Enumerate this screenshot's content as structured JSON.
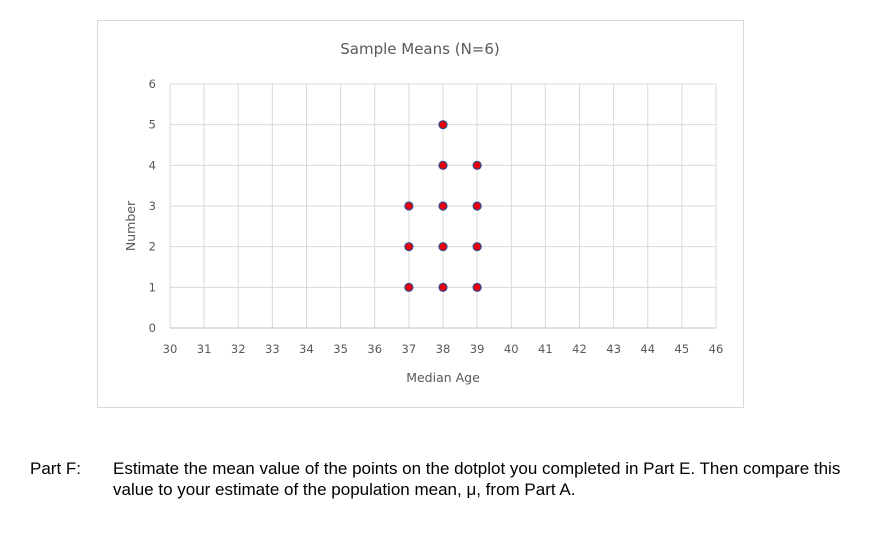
{
  "chart_data": {
    "type": "scatter",
    "title": "Sample Means (N=6)",
    "xlabel": "Median Age",
    "ylabel": "Number",
    "xlim": [
      30,
      46
    ],
    "ylim": [
      0,
      6
    ],
    "xticks": [
      30,
      31,
      32,
      33,
      34,
      35,
      36,
      37,
      38,
      39,
      40,
      41,
      42,
      43,
      44,
      45,
      46
    ],
    "yticks": [
      0,
      1,
      2,
      3,
      4,
      5,
      6
    ],
    "grid": true,
    "legend": "none",
    "marker_fill": "#e8000b",
    "marker_edge": "#2f4d8f",
    "points": [
      {
        "x": 37,
        "y": 1
      },
      {
        "x": 37,
        "y": 2
      },
      {
        "x": 37,
        "y": 3
      },
      {
        "x": 38,
        "y": 1
      },
      {
        "x": 38,
        "y": 2
      },
      {
        "x": 38,
        "y": 3
      },
      {
        "x": 38,
        "y": 4
      },
      {
        "x": 38,
        "y": 5
      },
      {
        "x": 39,
        "y": 1
      },
      {
        "x": 39,
        "y": 2
      },
      {
        "x": 39,
        "y": 3
      },
      {
        "x": 39,
        "y": 4
      }
    ]
  },
  "question": {
    "label": "Part F:",
    "text": "Estimate the mean value of the points on the dotplot you completed in Part E. Then compare this value to your estimate of the population mean, μ, from Part A."
  }
}
